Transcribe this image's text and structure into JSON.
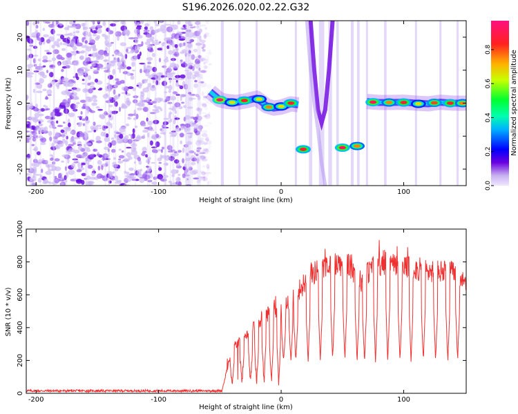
{
  "title": "S196.2026.020.02.22.G32",
  "chart_data": [
    {
      "type": "heatmap",
      "name": "spectrogram",
      "xlabel": "Height of straight line (km)",
      "ylabel": "Frequency (Hz)",
      "xlim": [
        -208,
        151
      ],
      "ylim": [
        -25,
        25
      ],
      "xticks": [
        -200,
        -100,
        0,
        100
      ],
      "yticks": [
        -20,
        -10,
        0,
        10,
        20
      ],
      "colorbar": {
        "label": "Normalized spectral amplitude",
        "range": [
          0,
          0.97
        ],
        "ticks": [
          0.0,
          0.2,
          0.4,
          0.6,
          0.8
        ],
        "colormap": [
          "#c8b4f0",
          "#6a00e0",
          "#0000ff",
          "#00d0ff",
          "#00ff40",
          "#c8ff00",
          "#ffb000",
          "#ff2020",
          "#ff1080"
        ]
      },
      "noise_region_km": [
        -208,
        -58
      ],
      "trace_points": [
        [
          -58,
          3.5
        ],
        [
          -50,
          1.0
        ],
        [
          -44,
          0.5
        ],
        [
          -36,
          0.2
        ],
        [
          -28,
          0.8
        ],
        [
          -20,
          1.5
        ],
        [
          -12,
          -0.8
        ],
        [
          -6,
          -1.5
        ],
        [
          0,
          -1.2
        ],
        [
          8,
          -0.2
        ],
        [
          14,
          -0.5
        ],
        [
          70,
          0.5
        ],
        [
          80,
          0.2
        ],
        [
          90,
          0.2
        ],
        [
          100,
          0.3
        ],
        [
          110,
          0.0
        ],
        [
          120,
          -0.2
        ],
        [
          130,
          0.3
        ],
        [
          140,
          0.0
        ],
        [
          151,
          0.0
        ]
      ],
      "blobs": [
        [
          -50,
          1.0,
          1.0
        ],
        [
          -40,
          0.2,
          0.7
        ],
        [
          -30,
          0.8,
          0.9
        ],
        [
          -18,
          1.2,
          0.7
        ],
        [
          -10,
          -1.2,
          0.8
        ],
        [
          0,
          -1.0,
          0.7
        ],
        [
          8,
          0.0,
          0.9
        ],
        [
          18,
          -14.0,
          0.9
        ],
        [
          50,
          -13.5,
          0.95
        ],
        [
          62,
          -13.0,
          0.8
        ],
        [
          75,
          0.3,
          0.95
        ],
        [
          88,
          0.2,
          0.8
        ],
        [
          100,
          0.2,
          0.9
        ],
        [
          112,
          -0.2,
          0.7
        ],
        [
          125,
          0.1,
          0.85
        ],
        [
          138,
          0.0,
          0.9
        ],
        [
          148,
          0.0,
          0.8
        ]
      ]
    },
    {
      "type": "line",
      "name": "snr",
      "xlabel": "Height of straight line (km)",
      "ylabel": "SNR (10 * v/v)",
      "xlim": [
        -208,
        151
      ],
      "ylim": [
        0,
        1000
      ],
      "xticks": [
        -200,
        -100,
        0,
        100
      ],
      "yticks": [
        0,
        200,
        400,
        600,
        800,
        1000
      ],
      "line_color": "#f03030",
      "series": {
        "noise_level": 15,
        "rise_start_km": -48,
        "envelope": [
          [
            -48,
            30
          ],
          [
            -40,
            300
          ],
          [
            -30,
            380
          ],
          [
            -20,
            470
          ],
          [
            -10,
            540
          ],
          [
            0,
            560
          ],
          [
            10,
            640
          ],
          [
            20,
            750
          ],
          [
            30,
            830
          ],
          [
            45,
            870
          ],
          [
            55,
            860
          ],
          [
            60,
            800
          ],
          [
            65,
            750
          ],
          [
            75,
            850
          ],
          [
            85,
            880
          ],
          [
            95,
            840
          ],
          [
            110,
            830
          ],
          [
            120,
            820
          ],
          [
            135,
            810
          ],
          [
            145,
            800
          ],
          [
            151,
            740
          ]
        ],
        "dip_positions_km": [
          -40,
          -32,
          -25,
          -20,
          -14,
          -8,
          -2,
          2,
          8,
          12,
          22,
          32,
          42,
          52,
          62,
          68,
          77,
          87,
          97,
          106,
          116,
          126,
          136,
          144
        ],
        "dip_floor": 180
      }
    }
  ]
}
